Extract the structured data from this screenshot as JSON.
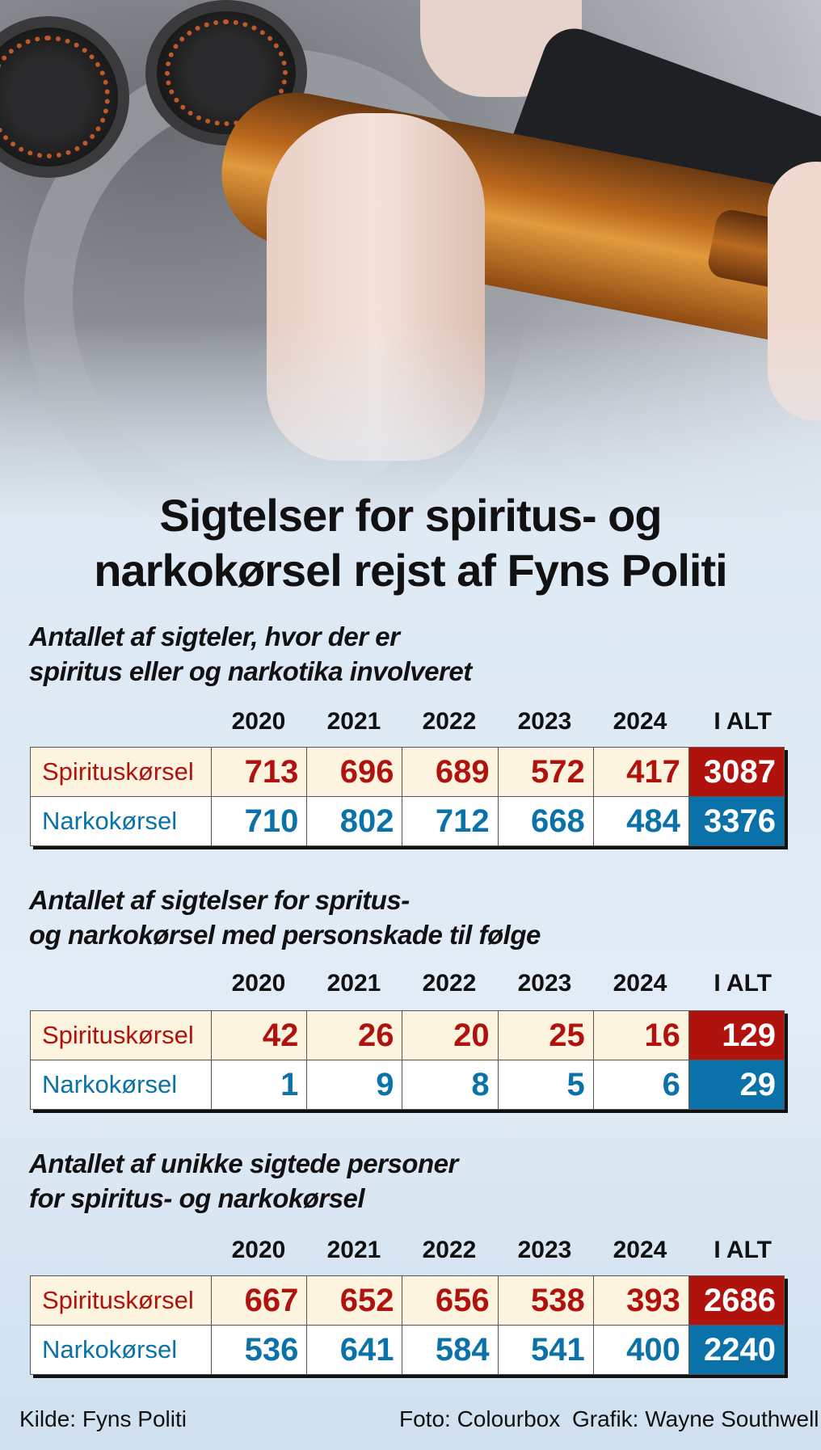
{
  "title": {
    "line1": "Sigtelser for spiritus- og",
    "line2": "narkokørsel rejst af Fyns Politi"
  },
  "colors": {
    "red": "#b0120e",
    "blue": "#0a72a8",
    "cream": "#fdf4df"
  },
  "tables": [
    {
      "subtitle1": "Antallet af sigteler, hvor der er",
      "subtitle2": "spiritus eller og narkotika involveret",
      "headers": [
        "2020",
        "2021",
        "2022",
        "2023",
        "2024",
        "I ALT"
      ],
      "rows": [
        {
          "label": "Spirituskørsel",
          "values": [
            "713",
            "696",
            "689",
            "572",
            "417"
          ],
          "total": "3087"
        },
        {
          "label": "Narkokørsel",
          "values": [
            "710",
            "802",
            "712",
            "668",
            "484"
          ],
          "total": "3376"
        }
      ]
    },
    {
      "subtitle1": "Antallet af sigtelser for spritus-",
      "subtitle2": "og narkokørsel med personskade til følge",
      "headers": [
        "2020",
        "2021",
        "2022",
        "2023",
        "2024",
        "I ALT"
      ],
      "rows": [
        {
          "label": "Spirituskørsel",
          "values": [
            "42",
            "26",
            "20",
            "25",
            "16"
          ],
          "total": "129"
        },
        {
          "label": "Narkokørsel",
          "values": [
            "1",
            "9",
            "8",
            "5",
            "6"
          ],
          "total": "29"
        }
      ]
    },
    {
      "subtitle1": "Antallet af unikke sigtede personer",
      "subtitle2": "for spiritus- og narkokørsel",
      "headers": [
        "2020",
        "2021",
        "2022",
        "2023",
        "2024",
        "I ALT"
      ],
      "rows": [
        {
          "label": "Spirituskørsel",
          "values": [
            "667",
            "652",
            "656",
            "538",
            "393"
          ],
          "total": "2686"
        },
        {
          "label": "Narkokørsel",
          "values": [
            "536",
            "641",
            "584",
            "541",
            "400"
          ],
          "total": "2240"
        }
      ]
    }
  ],
  "footer": {
    "source": "Kilde: Fyns Politi",
    "photo": "Foto: Colourbox",
    "graphic": "Grafik: Wayne Southwell"
  }
}
